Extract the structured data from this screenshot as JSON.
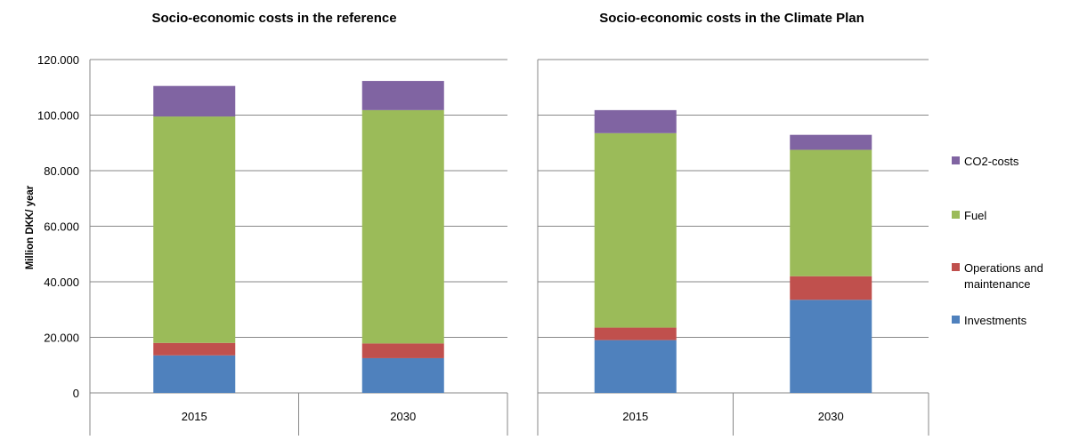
{
  "chart_data": [
    {
      "type": "bar",
      "stacked": true,
      "title": "Socio-economic costs in the reference",
      "ylabel": "Million DKK/ year",
      "ylim": [
        0,
        120000
      ],
      "yticks": [
        "0",
        "20.000",
        "40.000",
        "60.000",
        "80.000",
        "100.000",
        "120.000"
      ],
      "categories": [
        "2015",
        "2030"
      ],
      "series": [
        {
          "name": "Investments",
          "values": [
            13500,
            12500
          ]
        },
        {
          "name": "Operations and maintenance",
          "values": [
            4500,
            5300
          ]
        },
        {
          "name": "Fuel",
          "values": [
            81500,
            84000
          ]
        },
        {
          "name": "CO2-costs",
          "values": [
            11000,
            10500
          ]
        }
      ]
    },
    {
      "type": "bar",
      "stacked": true,
      "title": "Socio-economic costs in the Climate Plan",
      "ylim": [
        0,
        120000
      ],
      "categories": [
        "2015",
        "2030"
      ],
      "series": [
        {
          "name": "Investments",
          "values": [
            19000,
            33500
          ]
        },
        {
          "name": "Operations and maintenance",
          "values": [
            4500,
            8500
          ]
        },
        {
          "name": "Fuel",
          "values": [
            70000,
            45500
          ]
        },
        {
          "name": "CO2-costs",
          "values": [
            8300,
            5400
          ]
        }
      ]
    }
  ],
  "legend": [
    {
      "label": "CO2-costs",
      "color": "#8064a2"
    },
    {
      "label": "Fuel",
      "color": "#9bbb59"
    },
    {
      "label": "Operations and maintenance",
      "lines": [
        "Operations and",
        "maintenance"
      ],
      "color": "#c0504d"
    },
    {
      "label": "Investments",
      "color": "#4f81bd"
    }
  ],
  "series_colors": {
    "Investments": "#4f81bd",
    "Operations and maintenance": "#c0504d",
    "Fuel": "#9bbb59",
    "CO2-costs": "#8064a2"
  }
}
